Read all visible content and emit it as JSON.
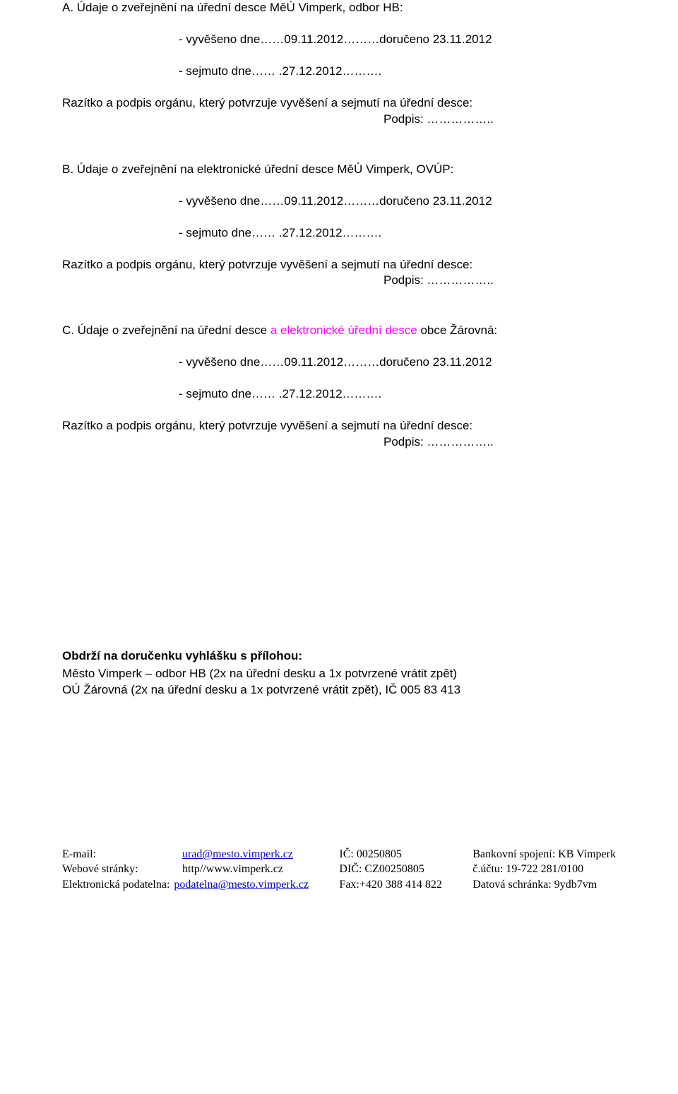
{
  "sectionA": {
    "heading": "A. Údaje o zveřejnění na úřední desce MěÚ Vimperk, odbor HB:",
    "posted": "- vyvěšeno dne……09.11.2012………doručeno 23.11.2012",
    "removed": "- sejmuto dne…… .27.12.2012……….",
    "stamp": "Razítko a podpis orgánu, který potvrzuje vyvěšení a sejmutí na úřední desce:",
    "signature": "Podpis: …………….."
  },
  "sectionB": {
    "heading": "B. Údaje o zveřejnění na elektronické úřední desce  MěÚ Vimperk, OVÚP:",
    "posted": "- vyvěšeno dne……09.11.2012………doručeno 23.11.2012",
    "removed": "- sejmuto dne…… .27.12.2012……….",
    "stamp": "Razítko a podpis orgánu, který potvrzuje vyvěšení a sejmutí na úřední desce:",
    "signature": "Podpis: …………….."
  },
  "sectionC": {
    "heading_prefix": "C. Údaje o zveřejnění na úřední desce ",
    "heading_highlight": "a elektronické úřední desce",
    "heading_suffix": " obce Žárovná:",
    "posted": "- vyvěšeno dne……09.11.2012………doručeno 23.11.2012",
    "removed": "- sejmuto dne…… .27.12.2012……….",
    "stamp": "Razítko a podpis orgánu, který potvrzuje vyvěšení a sejmutí na úřední desce:",
    "signature": "Podpis: …………….."
  },
  "recipients": {
    "heading": "Obdrží na doručenku vyhlášku s přílohou:",
    "line1": "Město Vimperk – odbor HB (2x na úřední desku a 1x potvrzené vrátit zpět)",
    "line2": "OÚ Žárovná (2x na úřední desku a 1x potvrzené vrátit zpět), IČ 005 83 413"
  },
  "footer": {
    "col1": {
      "r1_label": "E-mail:",
      "r1_value": "urad@mesto.vimperk.cz",
      "r2_label": "Webové stránky:",
      "r2_value": "http//www.vimperk.cz",
      "r3_label": "Elektronická podatelna:",
      "r3_value": "podatelna@mesto.vimperk.cz"
    },
    "col2": {
      "r1": "IČ: 00250805",
      "r2": "DIČ: CZ00250805",
      "r3": "Fax:+420 388 414 822"
    },
    "col3": {
      "r1": "Bankovní spojení: KB Vimperk",
      "r2": "č.účtu: 19-722 281/0100",
      "r3": "Datová schránka: 9ydb7vm"
    }
  }
}
